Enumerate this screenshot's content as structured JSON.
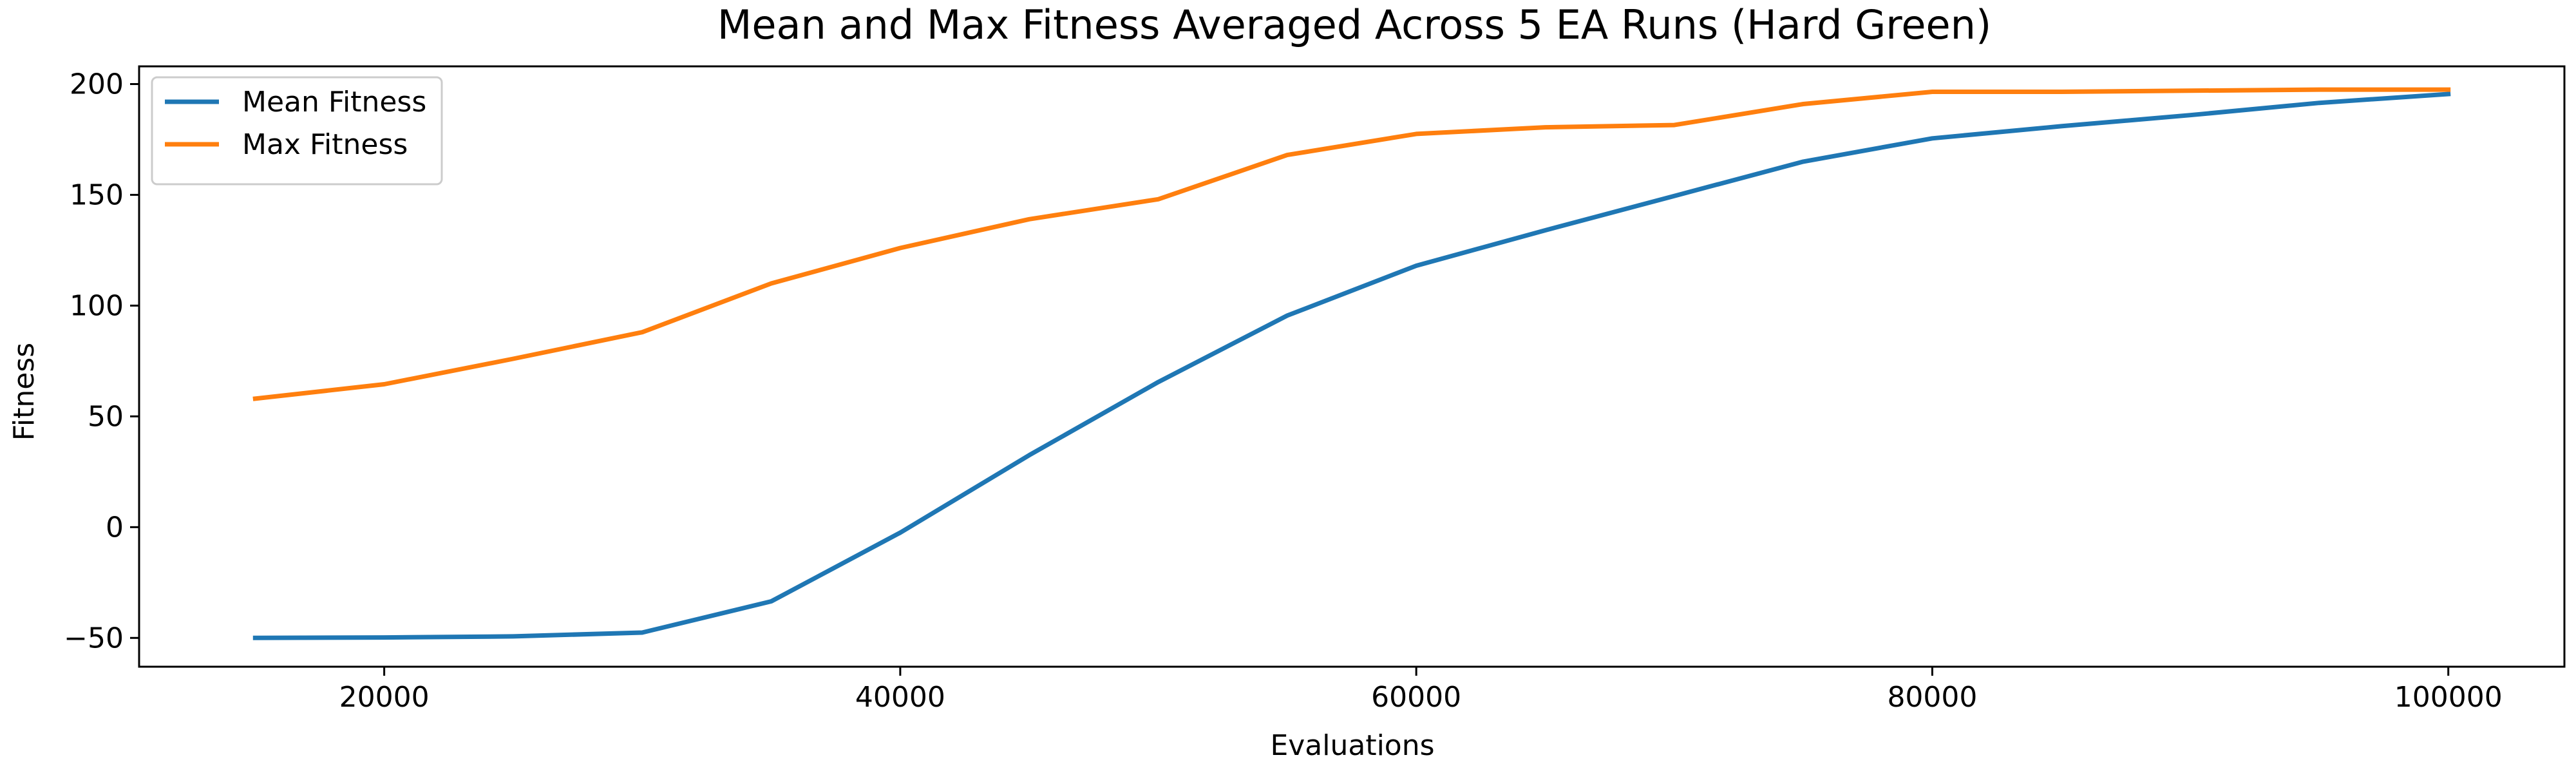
{
  "chart_data": {
    "type": "line",
    "title": "Mean and Max Fitness Averaged Across 5 EA Runs (Hard Green)",
    "xlabel": "Evaluations",
    "ylabel": "Fitness",
    "xlim": [
      10500,
      104500
    ],
    "ylim": [
      -63,
      208
    ],
    "xticks": [
      20000,
      40000,
      60000,
      80000,
      100000
    ],
    "yticks": [
      -50,
      0,
      50,
      100,
      150,
      200
    ],
    "grid": false,
    "legend_position": "upper-left",
    "x": [
      15000,
      20000,
      25000,
      30000,
      35000,
      40000,
      45000,
      50000,
      55000,
      60000,
      65000,
      70000,
      75000,
      80000,
      85000,
      90000,
      95000,
      100000
    ],
    "series": [
      {
        "name": "Mean Fitness",
        "color": "#1f77b4",
        "values": [
          -50,
          -49.8,
          -49.3,
          -47.6,
          -33.5,
          -2.5,
          32.5,
          65.5,
          95.5,
          118,
          134,
          149.5,
          165,
          175.5,
          181,
          186,
          191.5,
          195.5
        ]
      },
      {
        "name": "Max Fitness",
        "color": "#ff7f0e",
        "values": [
          58,
          64.5,
          76,
          88,
          110,
          126,
          139,
          148,
          168,
          177.5,
          180.5,
          181.5,
          191,
          196.5,
          196.5,
          197,
          197.5,
          197.5
        ]
      }
    ]
  }
}
